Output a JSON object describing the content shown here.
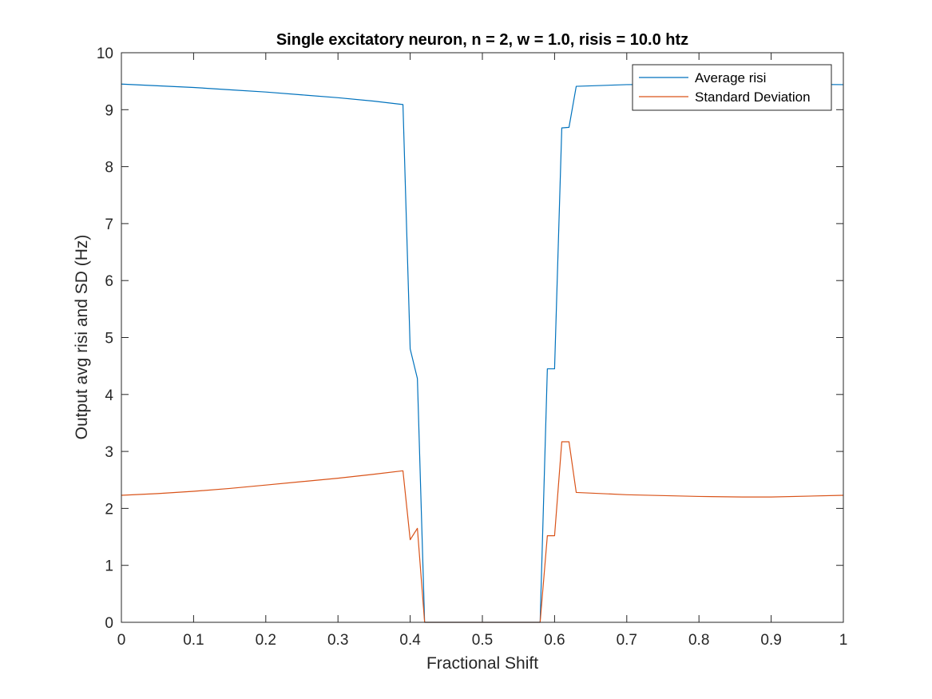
{
  "chart_data": {
    "type": "line",
    "title": "Single excitatory neuron, n = 2, w = 1.0, risis = 10.0 htz",
    "xlabel": "Fractional Shift",
    "ylabel": "Output avg risi and SD (Hz)",
    "xlim": [
      0,
      1
    ],
    "ylim": [
      0,
      10
    ],
    "xticks": [
      0,
      0.1,
      0.2,
      0.3,
      0.4,
      0.5,
      0.6,
      0.7,
      0.8,
      0.9,
      1
    ],
    "xtick_labels": [
      "0",
      "0.1",
      "0.2",
      "0.3",
      "0.4",
      "0.5",
      "0.6",
      "0.7",
      "0.8",
      "0.9",
      "1"
    ],
    "yticks": [
      0,
      1,
      2,
      3,
      4,
      5,
      6,
      7,
      8,
      9,
      10
    ],
    "ytick_labels": [
      "0",
      "1",
      "2",
      "3",
      "4",
      "5",
      "6",
      "7",
      "8",
      "9",
      "10"
    ],
    "grid": false,
    "box": true,
    "legend_position": "top-right",
    "series": [
      {
        "name": "Average risi",
        "color": "#0072BD",
        "x": [
          0,
          0.05,
          0.1,
          0.15,
          0.2,
          0.25,
          0.3,
          0.35,
          0.39,
          0.4,
          0.41,
          0.42,
          0.43,
          0.5,
          0.57,
          0.58,
          0.59,
          0.6,
          0.61,
          0.62,
          0.63,
          0.7,
          0.8,
          0.86,
          0.9,
          1
        ],
        "values": [
          9.45,
          9.42,
          9.39,
          9.35,
          9.31,
          9.26,
          9.21,
          9.15,
          9.09,
          4.8,
          4.28,
          0,
          0,
          0,
          0,
          0,
          4.45,
          4.45,
          8.68,
          8.69,
          9.41,
          9.44,
          9.45,
          9.45,
          9.45,
          9.44
        ]
      },
      {
        "name": "Standard Deviation",
        "color": "#D95319",
        "x": [
          0,
          0.05,
          0.1,
          0.15,
          0.2,
          0.25,
          0.3,
          0.35,
          0.39,
          0.4,
          0.41,
          0.42,
          0.43,
          0.5,
          0.57,
          0.58,
          0.59,
          0.6,
          0.61,
          0.62,
          0.63,
          0.7,
          0.8,
          0.86,
          0.9,
          1
        ],
        "values": [
          2.23,
          2.26,
          2.3,
          2.35,
          2.41,
          2.47,
          2.53,
          2.6,
          2.66,
          1.45,
          1.65,
          0,
          0,
          0,
          0,
          0,
          1.52,
          1.52,
          3.17,
          3.17,
          2.28,
          2.24,
          2.21,
          2.2,
          2.2,
          2.23
        ]
      }
    ]
  }
}
